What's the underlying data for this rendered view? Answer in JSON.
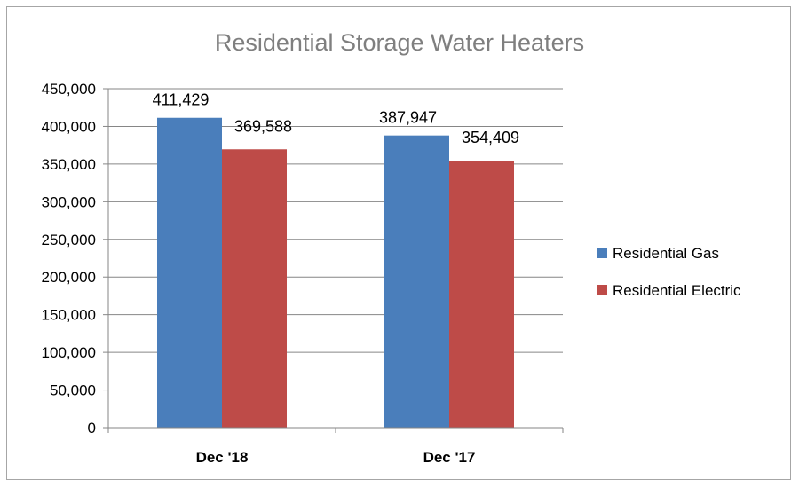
{
  "chart_data": {
    "type": "bar",
    "title": "Residential Storage Water Heaters",
    "xlabel": "",
    "ylabel": "",
    "categories": [
      "Dec '18",
      "Dec '17"
    ],
    "series": [
      {
        "name": "Residential Gas",
        "color": "#4a7ebb",
        "values": [
          411429,
          387947
        ],
        "labels": [
          "411,429",
          "387,947"
        ]
      },
      {
        "name": "Residential Electric",
        "color": "#be4b48",
        "values": [
          369588,
          354409
        ],
        "labels": [
          "369,588",
          "354,409"
        ]
      }
    ],
    "ylim": [
      0,
      450000
    ],
    "yticks": [
      0,
      50000,
      100000,
      150000,
      200000,
      250000,
      300000,
      350000,
      400000,
      450000
    ],
    "ytick_labels": [
      "0",
      "50,000",
      "100,000",
      "150,000",
      "200,000",
      "250,000",
      "300,000",
      "350,000",
      "400,000",
      "450,000"
    ],
    "grid": true,
    "legend": "right"
  }
}
